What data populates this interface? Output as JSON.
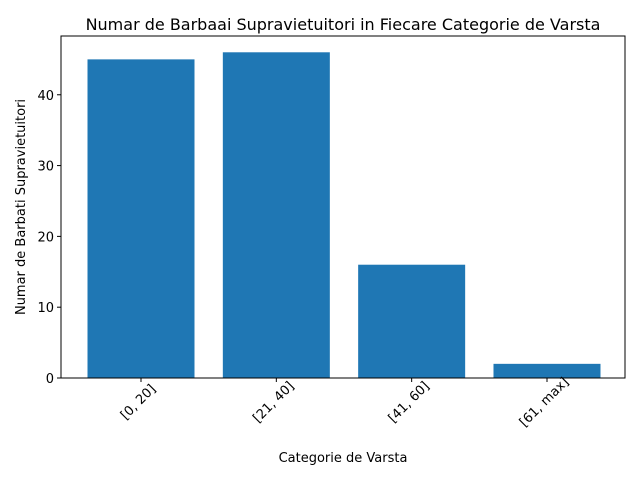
{
  "chart_data": {
    "type": "bar",
    "title": "Numar de Barbaai Supravietuitori in Fiecare Categorie de Varsta",
    "xlabel": "Categorie de Varsta",
    "ylabel": "Numar de Barbati Supravietuitori",
    "categories": [
      "[0, 20]",
      "[21, 40]",
      "[41, 60]",
      "[61, max]"
    ],
    "values": [
      45,
      46,
      16,
      2
    ],
    "ylim": [
      0,
      48.3
    ],
    "yticks": [
      0,
      10,
      20,
      30,
      40
    ],
    "grid": false,
    "legend": "none",
    "bar_color": "#1f77b4",
    "xtick_rotation": 45
  }
}
